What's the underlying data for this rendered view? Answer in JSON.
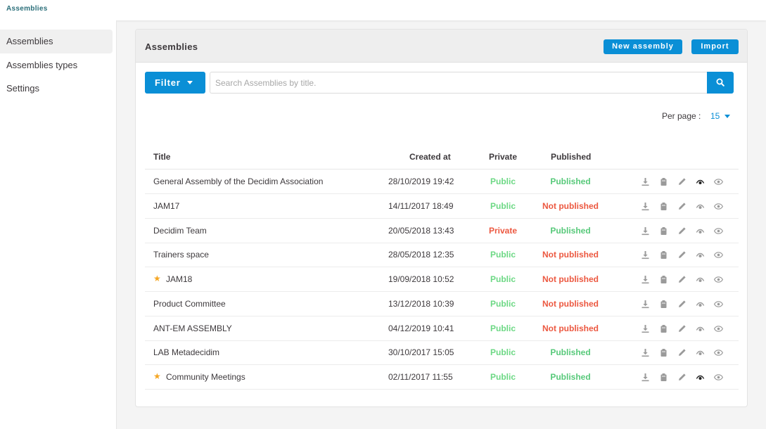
{
  "app": {
    "brand": "Assemblies"
  },
  "sidebar": {
    "items": [
      {
        "label": "Assemblies",
        "active": true
      },
      {
        "label": "Assemblies types",
        "active": false
      },
      {
        "label": "Settings",
        "active": false
      }
    ]
  },
  "card": {
    "title": "Assemblies",
    "new_button": "New assembly",
    "import_button": "Import"
  },
  "filter": {
    "button_label": "Filter",
    "search_placeholder": "Search Assemblies by title.",
    "search_icon": "search-icon"
  },
  "pagination": {
    "per_page_label": "Per page :",
    "per_page_value": "15"
  },
  "table": {
    "headers": {
      "title": "Title",
      "created_at": "Created at",
      "private": "Private",
      "published": "Published"
    },
    "action_icons": [
      "download-icon",
      "copy-icon",
      "pencil-icon",
      "preview-icon",
      "eye-icon"
    ],
    "rows": [
      {
        "title": "General Assembly of the Decidim Association",
        "starred": false,
        "created_at": "28/10/2019 19:42",
        "private": "Public",
        "published": "Published",
        "preview_active": true
      },
      {
        "title": "JAM17",
        "starred": false,
        "created_at": "14/11/2017 18:49",
        "private": "Public",
        "published": "Not published",
        "preview_active": false
      },
      {
        "title": "Decidim Team",
        "starred": false,
        "created_at": "20/05/2018 13:43",
        "private": "Private",
        "published": "Published",
        "preview_active": false
      },
      {
        "title": "Trainers space",
        "starred": false,
        "created_at": "28/05/2018 12:35",
        "private": "Public",
        "published": "Not published",
        "preview_active": false
      },
      {
        "title": "JAM18",
        "starred": true,
        "created_at": "19/09/2018 10:52",
        "private": "Public",
        "published": "Not published",
        "preview_active": false
      },
      {
        "title": "Product Committee",
        "starred": false,
        "created_at": "13/12/2018 10:39",
        "private": "Public",
        "published": "Not published",
        "preview_active": false
      },
      {
        "title": "ANT-EM ASSEMBLY",
        "starred": false,
        "created_at": "04/12/2019 10:41",
        "private": "Public",
        "published": "Not published",
        "preview_active": false
      },
      {
        "title": "LAB Metadecidim",
        "starred": false,
        "created_at": "30/10/2017 15:05",
        "private": "Public",
        "published": "Published",
        "preview_active": false
      },
      {
        "title": "Community Meetings",
        "starred": true,
        "created_at": "02/11/2017 11:55",
        "private": "Public",
        "published": "Published",
        "preview_active": true
      }
    ]
  },
  "colors": {
    "accent": "#0a8fd6",
    "public": "#6cd884",
    "published": "#57c97a",
    "private": "#ec5840",
    "not_published": "#ec5840",
    "star": "#f5a623",
    "icon": "#9a9a9a"
  }
}
